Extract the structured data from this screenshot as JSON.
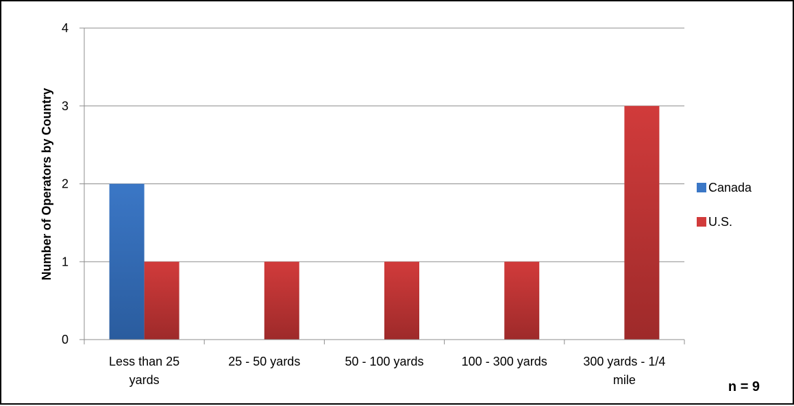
{
  "chart_data": {
    "type": "bar",
    "title": "",
    "xlabel": "",
    "ylabel": "Number of Operators by Country",
    "categories": [
      [
        "Less than 25",
        "yards"
      ],
      [
        "25 - 50 yards"
      ],
      [
        "50 - 100 yards"
      ],
      [
        "100 - 300 yards"
      ],
      [
        "300 yards - 1/4",
        "mile"
      ]
    ],
    "series": [
      {
        "name": "Canada",
        "values": [
          2,
          0,
          0,
          0,
          0
        ],
        "color": "#3b77c6",
        "color_dark": "#2a5c9e"
      },
      {
        "name": "U.S.",
        "values": [
          1,
          1,
          1,
          1,
          3
        ],
        "color": "#d13b3b",
        "color_dark": "#9e2a2a"
      }
    ],
    "ylim": [
      0,
      4
    ],
    "yticks": [
      "0",
      "1",
      "2",
      "3",
      "4"
    ],
    "grid": true,
    "legend": "right",
    "annotation": "n = 9"
  }
}
